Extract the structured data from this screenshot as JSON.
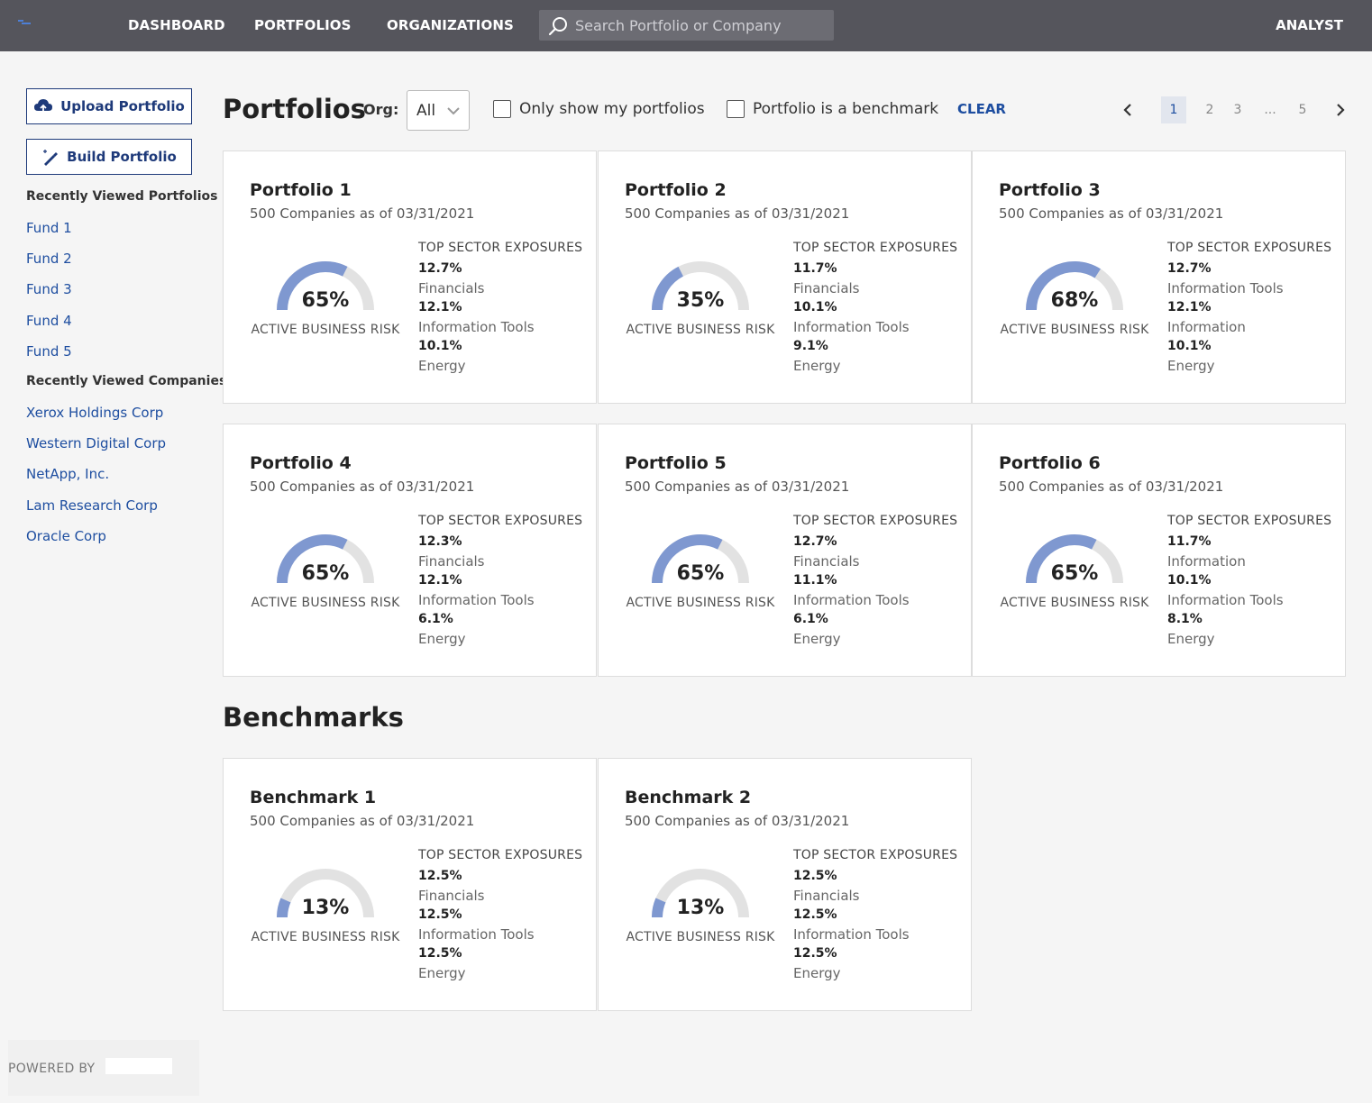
{
  "nav": {
    "links": [
      "DASHBOARD",
      "PORTFOLIOS",
      "ORGANIZATIONS"
    ],
    "search_placeholder": "Search Portfolio or Company",
    "user": "ANALYST"
  },
  "sidebar": {
    "upload_label": "Upload Portfolio",
    "build_label": "Build Portfolio",
    "recent_portfolios_heading": "Recently Viewed Portfolios",
    "recent_portfolios": [
      "Fund 1",
      "Fund 2",
      "Fund 3",
      "Fund 4",
      "Fund 5"
    ],
    "recent_companies_heading": "Recently Viewed Companies",
    "recent_companies": [
      "Xerox Holdings Corp",
      "Western Digital Corp",
      "NetApp, Inc.",
      "Lam Research Corp",
      "Oracle Corp"
    ],
    "powered_by": "POWERED BY"
  },
  "header": {
    "title": "Portfolios",
    "org_label": "Org:",
    "org_value": "All",
    "filter_mine": "Only show my portfolios",
    "filter_benchmark": "Portfolio is a benchmark",
    "clear_label": "CLEAR",
    "pages": [
      "1",
      "2",
      "3",
      "...",
      "5"
    ],
    "current_page": "1"
  },
  "colors": {
    "gauge_fill": "#7f98d0",
    "gauge_track": "#e2e2e2",
    "link": "#1e4ea0"
  },
  "card_labels": {
    "risk_label": "ACTIVE BUSINESS RISK",
    "sector_heading": "TOP SECTOR EXPOSURES"
  },
  "portfolios": [
    {
      "name": "Portfolio 1",
      "subtitle": "500 Companies as of 03/31/2021",
      "risk_pct": 65,
      "risk_text": "65%",
      "sectors": [
        {
          "value": "12.7%",
          "name": "Financials"
        },
        {
          "value": "12.1%",
          "name": "Information Tools"
        },
        {
          "value": "10.1%",
          "name": "Energy"
        }
      ]
    },
    {
      "name": "Portfolio 2",
      "subtitle": "500 Companies as of 03/31/2021",
      "risk_pct": 35,
      "risk_text": "35%",
      "sectors": [
        {
          "value": "11.7%",
          "name": "Financials"
        },
        {
          "value": "10.1%",
          "name": "Information Tools"
        },
        {
          "value": "9.1%",
          "name": "Energy"
        }
      ]
    },
    {
      "name": "Portfolio 3",
      "subtitle": "500 Companies as of 03/31/2021",
      "risk_pct": 68,
      "risk_text": "68%",
      "sectors": [
        {
          "value": "12.7%",
          "name": "Information Tools"
        },
        {
          "value": "12.1%",
          "name": "Information"
        },
        {
          "value": "10.1%",
          "name": "Energy"
        }
      ]
    },
    {
      "name": "Portfolio 4",
      "subtitle": "500 Companies as of 03/31/2021",
      "risk_pct": 65,
      "risk_text": "65%",
      "sectors": [
        {
          "value": "12.3%",
          "name": "Financials"
        },
        {
          "value": "12.1%",
          "name": "Information Tools"
        },
        {
          "value": "6.1%",
          "name": "Energy"
        }
      ]
    },
    {
      "name": "Portfolio 5",
      "subtitle": "500 Companies as of 03/31/2021",
      "risk_pct": 65,
      "risk_text": "65%",
      "sectors": [
        {
          "value": "12.7%",
          "name": "Financials"
        },
        {
          "value": "11.1%",
          "name": "Information Tools"
        },
        {
          "value": "6.1%",
          "name": "Energy"
        }
      ]
    },
    {
      "name": "Portfolio 6",
      "subtitle": "500 Companies as of 03/31/2021",
      "risk_pct": 65,
      "risk_text": "65%",
      "sectors": [
        {
          "value": "11.7%",
          "name": "Information"
        },
        {
          "value": "10.1%",
          "name": "Information Tools"
        },
        {
          "value": "8.1%",
          "name": "Energy"
        }
      ]
    }
  ],
  "benchmarks_title": "Benchmarks",
  "benchmarks": [
    {
      "name": "Benchmark 1",
      "subtitle": "500 Companies as of 03/31/2021",
      "risk_pct": 13,
      "risk_text": "13%",
      "sectors": [
        {
          "value": "12.5%",
          "name": "Financials"
        },
        {
          "value": "12.5%",
          "name": "Information Tools"
        },
        {
          "value": "12.5%",
          "name": "Energy"
        }
      ]
    },
    {
      "name": "Benchmark 2",
      "subtitle": "500 Companies as of 03/31/2021",
      "risk_pct": 13,
      "risk_text": "13%",
      "sectors": [
        {
          "value": "12.5%",
          "name": "Financials"
        },
        {
          "value": "12.5%",
          "name": "Information Tools"
        },
        {
          "value": "12.5%",
          "name": "Energy"
        }
      ]
    }
  ]
}
